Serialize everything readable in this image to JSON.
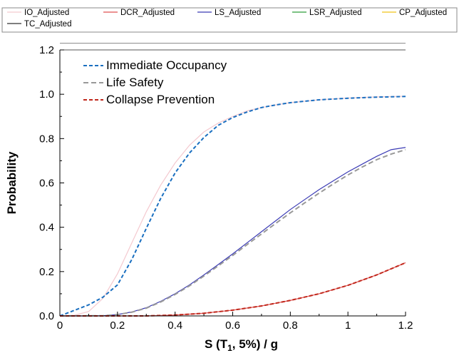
{
  "chart_data": {
    "type": "line",
    "xlabel_parts": {
      "prefix": "S (T",
      "subscript": "1",
      "suffix": ", 5%) / g"
    },
    "ylabel": "Probability",
    "xlim": [
      0,
      1.2
    ],
    "ylim": [
      0,
      1.2
    ],
    "xticks": [
      0,
      0.2,
      0.4,
      0.6,
      0.8,
      1,
      1.2
    ],
    "yticks": [
      0,
      0.2,
      0.4,
      0.6,
      0.8,
      1.0,
      1.2
    ],
    "xtick_labels": [
      "0",
      "0.2",
      "0.4",
      "0.6",
      "0.8",
      "1",
      "1.2"
    ],
    "ytick_labels": [
      "0.0",
      "0.2",
      "0.4",
      "0.6",
      "0.8",
      "1.0",
      "1.2"
    ],
    "top_legend_position": "above plot",
    "inner_legend_position": "top-left",
    "series": [
      {
        "name": "IO_Adjusted",
        "color": "#f4c9cf",
        "dash": "solid",
        "legend": "top",
        "x": [
          0,
          0.05,
          0.1,
          0.15,
          0.2,
          0.25,
          0.3,
          0.35,
          0.4,
          0.45,
          0.5,
          0.55,
          0.6,
          0.65,
          0.7,
          0.75,
          0.8,
          0.9,
          1.0,
          1.1,
          1.2
        ],
        "y": [
          0,
          0.003,
          0.02,
          0.08,
          0.19,
          0.33,
          0.47,
          0.59,
          0.69,
          0.77,
          0.83,
          0.87,
          0.9,
          0.925,
          0.94,
          0.952,
          0.962,
          0.975,
          0.983,
          0.988,
          0.991
        ]
      },
      {
        "name": "DCR_Adjusted",
        "color": "#e05050",
        "dash": "solid",
        "legend": "top",
        "x": [
          0,
          0.3,
          0.4,
          0.5,
          0.6,
          0.7,
          0.8,
          0.9,
          1.0,
          1.1,
          1.2
        ],
        "y": [
          0,
          0.0,
          0.004,
          0.012,
          0.026,
          0.045,
          0.07,
          0.1,
          0.138,
          0.185,
          0.24
        ]
      },
      {
        "name": "LS_Adjusted",
        "color": "#3b3bb5",
        "dash": "solid",
        "legend": "top",
        "x": [
          0,
          0.1,
          0.15,
          0.2,
          0.25,
          0.3,
          0.35,
          0.4,
          0.45,
          0.5,
          0.55,
          0.6,
          0.65,
          0.7,
          0.75,
          0.8,
          0.85,
          0.9,
          0.95,
          1.0,
          1.05,
          1.1,
          1.15,
          1.2
        ],
        "y": [
          0,
          0.0,
          0.001,
          0.006,
          0.018,
          0.037,
          0.066,
          0.1,
          0.14,
          0.185,
          0.232,
          0.28,
          0.33,
          0.38,
          0.43,
          0.48,
          0.525,
          0.57,
          0.61,
          0.65,
          0.685,
          0.72,
          0.75,
          0.76
        ]
      },
      {
        "name": "LSR_Adjusted",
        "color": "#2e9e3a",
        "dash": "solid",
        "legend": "top",
        "x": [],
        "y": []
      },
      {
        "name": "CP_Adjusted",
        "color": "#f0c419",
        "dash": "solid",
        "legend": "top",
        "x": [],
        "y": []
      },
      {
        "name": "TC_Adjusted",
        "color": "#333333",
        "dash": "solid",
        "legend": "top",
        "x": [],
        "y": []
      },
      {
        "name": "Immediate Occupancy",
        "color": "#1a6fc0",
        "dash": "dashed",
        "legend": "inner",
        "x": [
          0,
          0.05,
          0.1,
          0.15,
          0.2,
          0.25,
          0.3,
          0.35,
          0.4,
          0.45,
          0.5,
          0.55,
          0.6,
          0.65,
          0.7,
          0.75,
          0.8,
          0.9,
          1.0,
          1.1,
          1.2
        ],
        "y": [
          0,
          0.025,
          0.05,
          0.085,
          0.14,
          0.255,
          0.395,
          0.53,
          0.645,
          0.735,
          0.805,
          0.86,
          0.895,
          0.92,
          0.94,
          0.952,
          0.962,
          0.975,
          0.982,
          0.987,
          0.99
        ]
      },
      {
        "name": "Life Safety",
        "color": "#999999",
        "dash": "dashed",
        "legend": "inner",
        "x": [
          0,
          0.15,
          0.2,
          0.25,
          0.3,
          0.35,
          0.4,
          0.45,
          0.5,
          0.55,
          0.6,
          0.65,
          0.7,
          0.75,
          0.8,
          0.85,
          0.9,
          0.95,
          1.0,
          1.05,
          1.1,
          1.15,
          1.2
        ],
        "y": [
          0,
          0.001,
          0.006,
          0.017,
          0.035,
          0.063,
          0.097,
          0.136,
          0.18,
          0.226,
          0.273,
          0.322,
          0.37,
          0.418,
          0.465,
          0.51,
          0.554,
          0.596,
          0.636,
          0.672,
          0.705,
          0.73,
          0.75
        ]
      },
      {
        "name": "Collapse Prevention",
        "color": "#c0261a",
        "dash": "dashed",
        "legend": "inner",
        "x": [
          0,
          0.3,
          0.4,
          0.5,
          0.6,
          0.7,
          0.8,
          0.9,
          1.0,
          1.1,
          1.2
        ],
        "y": [
          0,
          0.0,
          0.004,
          0.012,
          0.026,
          0.045,
          0.07,
          0.1,
          0.138,
          0.185,
          0.24
        ]
      }
    ],
    "reference_lines": [
      {
        "y": 1.2,
        "color": "#555555"
      },
      {
        "y": 1.23,
        "color": "#888888"
      }
    ]
  }
}
